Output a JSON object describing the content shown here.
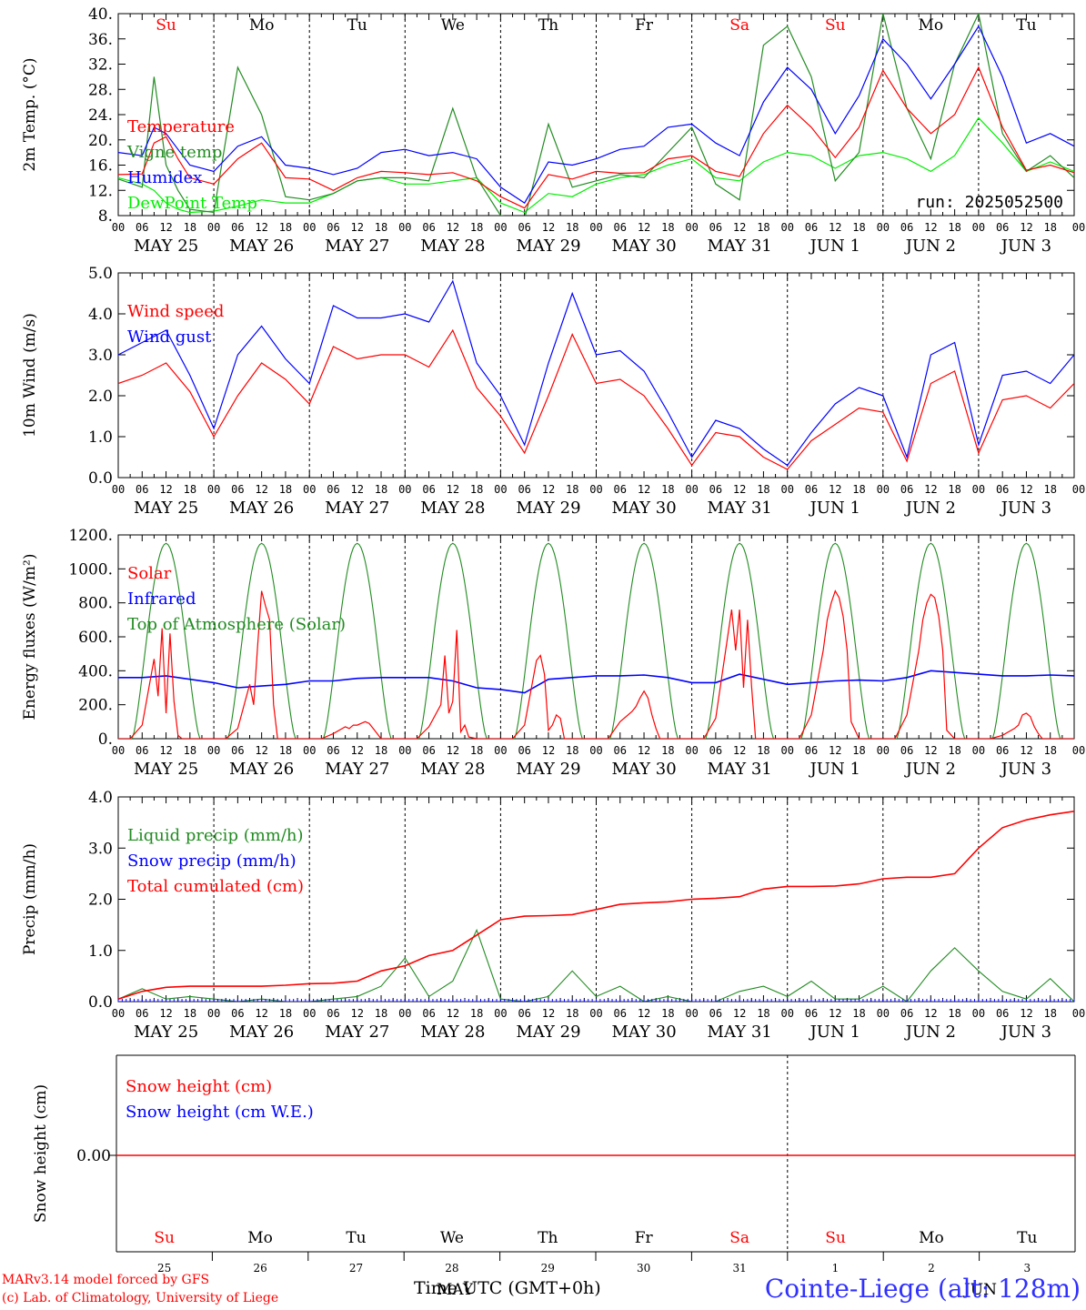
{
  "footer": {
    "credit_line1": "MARv3.14 model forced by GFS",
    "credit_line2": "(c) Lab. of Climatology, University of Liege",
    "station": "Cointe-Liege (alt: 128m)",
    "x_title": "Time UTC (GMT+0h)"
  },
  "days": [
    {
      "dow": "Su",
      "date": "MAY 25",
      "num": "25",
      "weekend": true
    },
    {
      "dow": "Mo",
      "date": "MAY 26",
      "num": "26",
      "weekend": false
    },
    {
      "dow": "Tu",
      "date": "MAY 27",
      "num": "27",
      "weekend": false
    },
    {
      "dow": "We",
      "date": "MAY 28",
      "num": "28",
      "weekend": false
    },
    {
      "dow": "Th",
      "date": "MAY 29",
      "num": "29",
      "weekend": false
    },
    {
      "dow": "Fr",
      "date": "MAY 30",
      "num": "30",
      "weekend": false
    },
    {
      "dow": "Sa",
      "date": "MAY 31",
      "num": "31",
      "weekend": true
    },
    {
      "dow": "Su",
      "date": "JUN  1",
      "num": "1",
      "weekend": true
    },
    {
      "dow": "Mo",
      "date": "JUN  2",
      "num": "2",
      "weekend": false
    },
    {
      "dow": "Tu",
      "date": "JUN  3",
      "num": "3",
      "weekend": false
    }
  ],
  "hour_labels": [
    "00",
    "06",
    "12",
    "18"
  ],
  "colors": {
    "red": "#ff0000",
    "green": "#228b22",
    "blue": "#0000ff",
    "lightgreen": "#00ee00",
    "grid": "#000000"
  },
  "chart_data": [
    {
      "type": "line",
      "ylabel": "2m Temp. (°C)",
      "ylim": [
        8,
        40
      ],
      "yticks": [
        "8.",
        "12.",
        "16.",
        "20.",
        "24.",
        "28.",
        "32.",
        "36.",
        "40."
      ],
      "annotation": "run: 2025052500",
      "hours": [
        0,
        6,
        9,
        12,
        15,
        18,
        24,
        30,
        36,
        42,
        48,
        54,
        60,
        66,
        72,
        78,
        84,
        90,
        96,
        102,
        108,
        114,
        120,
        126,
        132,
        138,
        144,
        150,
        156,
        162,
        168,
        174,
        180,
        186,
        192,
        198,
        204,
        210,
        216,
        222,
        228,
        234,
        240
      ],
      "series": [
        {
          "name": "Temperature",
          "color": "#ff0000",
          "values": [
            14.5,
            14.6,
            19.5,
            20.5,
            17.0,
            14.0,
            13.0,
            17.0,
            19.5,
            14.0,
            13.8,
            12.0,
            14.0,
            15.0,
            14.8,
            14.5,
            14.8,
            13.5,
            11.0,
            9.2,
            14.5,
            13.8,
            15.0,
            14.7,
            14.8,
            17.0,
            17.5,
            15.0,
            14.2,
            21.0,
            25.5,
            22.0,
            17.2,
            22.0,
            31.0,
            25.0,
            21.0,
            24.0,
            31.5,
            22.0,
            15.2,
            16.0,
            14.8
          ]
        },
        {
          "name": "Vigne temp",
          "color": "#228b22",
          "values": [
            13.8,
            12.5,
            30.0,
            16.0,
            12.0,
            9.0,
            8.5,
            31.5,
            24.0,
            11.0,
            10.5,
            11.5,
            13.5,
            14.0,
            14.0,
            13.5,
            25.0,
            14.0,
            8.0,
            7.5,
            22.5,
            12.5,
            13.5,
            14.5,
            14.0,
            18.0,
            22.0,
            13.0,
            10.5,
            35.0,
            38.0,
            30.0,
            13.5,
            18.0,
            40.0,
            25.0,
            17.0,
            32.0,
            40.0,
            21.0,
            15.0,
            17.5,
            14.0
          ]
        },
        {
          "name": "Humidex",
          "color": "#0000ff",
          "values": [
            18.0,
            17.5,
            22.0,
            21.0,
            18.5,
            16.0,
            15.0,
            19.0,
            20.5,
            16.0,
            15.5,
            14.5,
            15.5,
            18.0,
            18.5,
            17.5,
            18.0,
            17.0,
            12.5,
            10.0,
            16.5,
            16.0,
            17.0,
            18.5,
            19.0,
            22.0,
            22.5,
            19.5,
            17.5,
            26.0,
            31.5,
            28.0,
            21.0,
            27.0,
            36.0,
            32.0,
            26.5,
            32.0,
            38.0,
            30.0,
            19.5,
            21.0,
            19.0
          ]
        },
        {
          "name": "DewPoint Temp",
          "color": "#00ee00",
          "values": [
            14.0,
            13.0,
            12.0,
            10.0,
            9.0,
            8.5,
            8.7,
            9.5,
            10.5,
            10.0,
            10.0,
            11.5,
            13.5,
            14.0,
            13.0,
            13.0,
            13.5,
            14.0,
            10.0,
            8.5,
            11.5,
            11.0,
            13.0,
            14.0,
            14.5,
            16.0,
            17.0,
            14.0,
            13.5,
            16.5,
            18.0,
            17.5,
            15.5,
            17.5,
            18.0,
            17.0,
            15.0,
            17.5,
            23.5,
            19.5,
            15.0,
            16.5,
            15.0
          ]
        }
      ]
    },
    {
      "type": "line",
      "ylabel": "10m Wind (m/s)",
      "ylim": [
        0,
        5
      ],
      "yticks": [
        "0.0",
        "1.0",
        "2.0",
        "3.0",
        "4.0",
        "5.0"
      ],
      "hours": [
        0,
        6,
        12,
        18,
        24,
        30,
        36,
        42,
        48,
        54,
        60,
        66,
        72,
        78,
        84,
        90,
        96,
        102,
        108,
        114,
        120,
        126,
        132,
        138,
        144,
        150,
        156,
        162,
        168,
        174,
        180,
        186,
        192,
        198,
        204,
        210,
        216,
        222,
        228,
        234,
        240
      ],
      "series": [
        {
          "name": "Wind speed",
          "color": "#ff0000",
          "values": [
            2.3,
            2.5,
            2.8,
            2.1,
            1.0,
            2.0,
            2.8,
            2.4,
            1.8,
            3.2,
            2.9,
            3.0,
            3.0,
            2.7,
            3.6,
            2.2,
            1.5,
            0.6,
            2.0,
            3.5,
            2.3,
            2.4,
            2.0,
            1.2,
            0.3,
            1.1,
            1.0,
            0.5,
            0.2,
            0.9,
            1.3,
            1.7,
            1.6,
            0.4,
            2.3,
            2.6,
            0.6,
            1.9,
            2.0,
            1.7,
            2.3
          ]
        },
        {
          "name": "Wind gust",
          "color": "#0000ff",
          "values": [
            3.0,
            3.3,
            3.6,
            2.5,
            1.2,
            3.0,
            3.7,
            2.9,
            2.3,
            4.2,
            3.9,
            3.9,
            4.0,
            3.8,
            4.8,
            2.8,
            2.0,
            0.8,
            2.8,
            4.5,
            3.0,
            3.1,
            2.6,
            1.6,
            0.5,
            1.4,
            1.2,
            0.7,
            0.3,
            1.1,
            1.8,
            2.2,
            2.0,
            0.5,
            3.0,
            3.3,
            0.8,
            2.5,
            2.6,
            2.3,
            3.0
          ]
        }
      ]
    },
    {
      "type": "line",
      "ylabel": "Energy fluxes (W/m²)",
      "ylim": [
        0,
        1200
      ],
      "yticks": [
        "0.",
        "200.",
        "400.",
        "600.",
        "800.",
        "1000.",
        "1200."
      ],
      "hours": [
        0,
        3,
        6,
        9,
        10,
        11,
        12,
        13,
        14,
        15,
        16,
        18,
        21,
        24
      ],
      "series": [
        {
          "name": "Solar",
          "color": "#ff0000",
          "days": [
            [
              0,
              0,
              80,
              470,
              250,
              650,
              150,
              620,
              220,
              20,
              0,
              0,
              0,
              0
            ],
            [
              0,
              0,
              60,
              320,
              200,
              550,
              870,
              780,
              700,
              200,
              0,
              0,
              0,
              0
            ],
            [
              0,
              0,
              30,
              70,
              60,
              80,
              80,
              90,
              100,
              90,
              60,
              0,
              0,
              0
            ],
            [
              0,
              0,
              70,
              200,
              490,
              150,
              220,
              640,
              40,
              80,
              10,
              0,
              0,
              0
            ],
            [
              0,
              0,
              80,
              460,
              490,
              380,
              50,
              80,
              140,
              120,
              0,
              0,
              0,
              0
            ],
            [
              0,
              0,
              100,
              160,
              190,
              240,
              280,
              240,
              140,
              60,
              0,
              0,
              0,
              0
            ],
            [
              0,
              0,
              120,
              600,
              760,
              520,
              760,
              300,
              700,
              310,
              0,
              0,
              0,
              0
            ],
            [
              0,
              0,
              140,
              520,
              700,
              800,
              870,
              830,
              720,
              520,
              100,
              0,
              0,
              0
            ],
            [
              0,
              0,
              140,
              520,
              700,
              800,
              850,
              830,
              720,
              520,
              50,
              0,
              0,
              0
            ],
            [
              0,
              0,
              20,
              60,
              80,
              140,
              150,
              130,
              70,
              30,
              0,
              0,
              0,
              0
            ]
          ]
        },
        {
          "name": "Infrared",
          "color": "#0000ff",
          "values": [
            360,
            360,
            370,
            350,
            330,
            300,
            310,
            320,
            340,
            340,
            355,
            360,
            360,
            360,
            340,
            300,
            290,
            270,
            350,
            360,
            370,
            370,
            375,
            360,
            330,
            330,
            380,
            350,
            320,
            330,
            340,
            345,
            340,
            360,
            400,
            390,
            380,
            370,
            370,
            375,
            370
          ]
        },
        {
          "name": "Top of Atmosphere (Solar)",
          "color": "#228b22",
          "peak": 1150
        }
      ]
    },
    {
      "type": "line",
      "ylabel": "Precip (mm/h)",
      "ylim": [
        0,
        4
      ],
      "yticks": [
        "0.0",
        "1.0",
        "2.0",
        "3.0",
        "4.0"
      ],
      "hours": [
        0,
        6,
        12,
        18,
        24,
        30,
        36,
        42,
        48,
        54,
        60,
        66,
        72,
        78,
        84,
        90,
        96,
        102,
        108,
        114,
        120,
        126,
        132,
        138,
        144,
        150,
        156,
        162,
        168,
        174,
        180,
        186,
        192,
        198,
        204,
        210,
        216,
        222,
        228,
        234,
        240
      ],
      "series": [
        {
          "name": "Liquid precip (mm/h)",
          "color": "#228b22",
          "values": [
            0.05,
            0.25,
            0.05,
            0.1,
            0.05,
            0.0,
            0.05,
            0.0,
            0.0,
            0.05,
            0.1,
            0.3,
            0.85,
            0.1,
            0.4,
            1.4,
            0.05,
            0.0,
            0.1,
            0.6,
            0.1,
            0.3,
            0.0,
            0.1,
            0.0,
            0.0,
            0.2,
            0.3,
            0.1,
            0.4,
            0.05,
            0.05,
            0.3,
            0.0,
            0.6,
            1.05,
            0.6,
            0.2,
            0.05,
            0.45,
            0.0
          ]
        },
        {
          "name": "Snow precip (mm/h)",
          "color": "#0000ff",
          "values": [
            0.0,
            0.0,
            0.0,
            0.0,
            0.0,
            0.0,
            0.0,
            0.0,
            0.0,
            0.0,
            0.0,
            0.0,
            0.0,
            0.0,
            0.0,
            0.0,
            0.0,
            0.0,
            0.0,
            0.0,
            0.0,
            0.0,
            0.0,
            0.0,
            0.0,
            0.0,
            0.0,
            0.0,
            0.0,
            0.0,
            0.0,
            0.0,
            0.0,
            0.0,
            0.0,
            0.0,
            0.0,
            0.0,
            0.0,
            0.0,
            0.0
          ]
        },
        {
          "name": "Total cumulated (cm)",
          "color": "#ff0000",
          "values": [
            0.05,
            0.2,
            0.28,
            0.3,
            0.3,
            0.3,
            0.3,
            0.32,
            0.35,
            0.36,
            0.4,
            0.6,
            0.7,
            0.9,
            1.0,
            1.3,
            1.6,
            1.67,
            1.68,
            1.7,
            1.8,
            1.9,
            1.93,
            1.95,
            2.0,
            2.02,
            2.05,
            2.2,
            2.25,
            2.25,
            2.26,
            2.3,
            2.4,
            2.43,
            2.43,
            2.5,
            3.0,
            3.4,
            3.55,
            3.65,
            3.72
          ]
        }
      ]
    },
    {
      "type": "line",
      "ylabel": "Snow height (cm)",
      "yticks": [
        "0.00"
      ],
      "series": [
        {
          "name": "Snow height (cm)",
          "color": "#ff0000",
          "values": [
            0.0,
            0.0
          ]
        },
        {
          "name": "Snow height (cm W.E.)",
          "color": "#0000ff",
          "values": [
            0.0,
            0.0
          ]
        }
      ],
      "bottom_month_label": "MAY",
      "bottom_month_label2": "JUN"
    }
  ]
}
